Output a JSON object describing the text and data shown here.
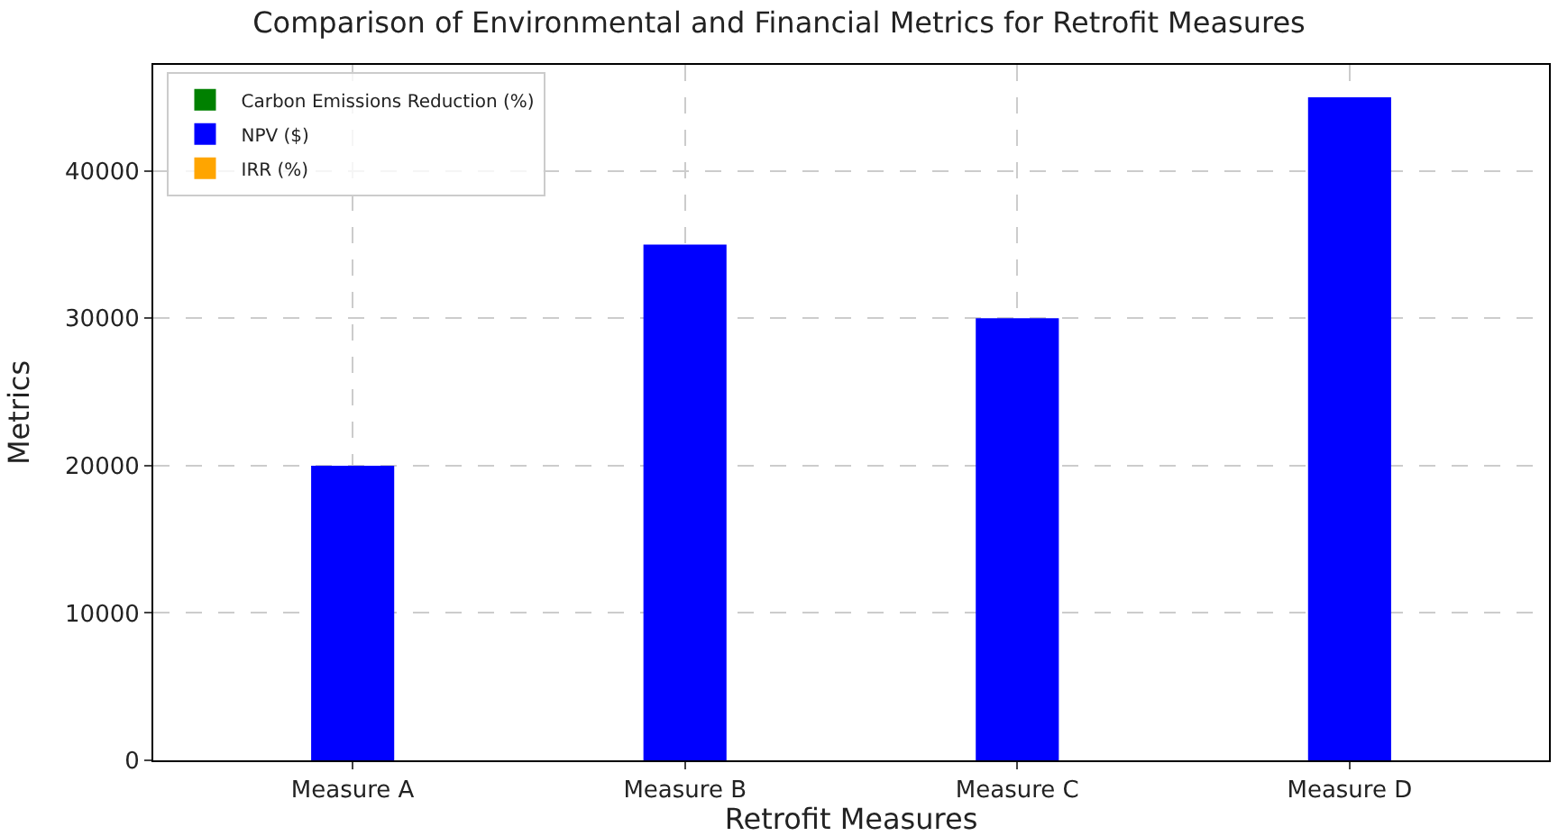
{
  "chart_data": {
    "type": "bar",
    "title": "Comparison of Environmental and Financial Metrics for Retrofit Measures",
    "xlabel": "Retrofit Measures",
    "ylabel": "Metrics",
    "categories": [
      "Measure A",
      "Measure B",
      "Measure C",
      "Measure D"
    ],
    "series": [
      {
        "name": "Carbon Emissions Reduction (%)",
        "color": "#008000",
        "values": [
          null,
          null,
          null,
          null
        ]
      },
      {
        "name": "NPV ($)",
        "color": "#0000ff",
        "values": [
          20000,
          35000,
          30000,
          45000
        ]
      },
      {
        "name": "IRR (%)",
        "color": "#ffa500",
        "values": [
          null,
          null,
          null,
          null
        ]
      }
    ],
    "ylim": [
      0,
      47200
    ],
    "yticks": [
      0,
      10000,
      20000,
      30000,
      40000
    ],
    "grid": true,
    "legend": "top left"
  }
}
